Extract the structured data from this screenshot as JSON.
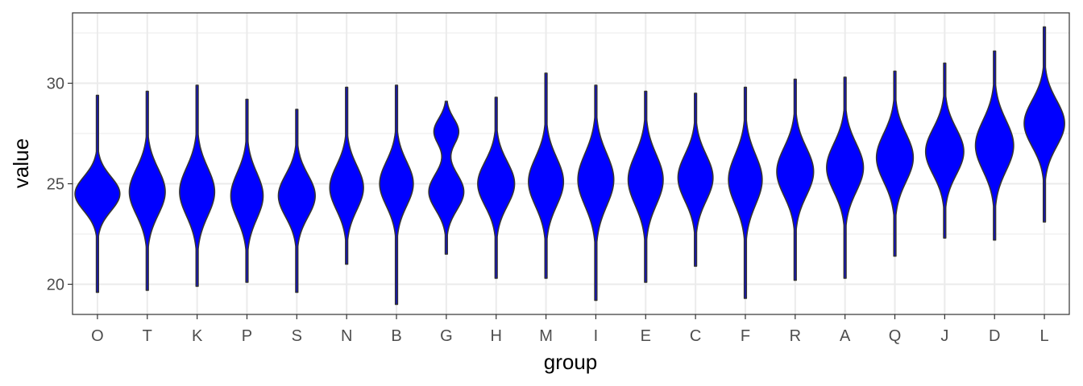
{
  "chart_data": {
    "type": "violin",
    "xlabel": "group",
    "ylabel": "value",
    "ylim": [
      18.5,
      33.5
    ],
    "yticks": [
      20,
      25,
      30
    ],
    "grid": true,
    "legend": "none",
    "fill_color": "#0000ff",
    "outline_color": "#333333",
    "categories": [
      "O",
      "T",
      "K",
      "P",
      "S",
      "N",
      "B",
      "G",
      "H",
      "M",
      "I",
      "E",
      "C",
      "F",
      "R",
      "A",
      "Q",
      "J",
      "D",
      "L"
    ],
    "series": [
      {
        "group": "O",
        "min": 19.6,
        "max": 29.4,
        "modes": [
          {
            "center": 24.5,
            "width": 1.0,
            "spread": 0.85
          }
        ]
      },
      {
        "group": "T",
        "min": 19.7,
        "max": 29.6,
        "modes": [
          {
            "center": 24.6,
            "width": 0.8,
            "spread": 1.15
          }
        ]
      },
      {
        "group": "K",
        "min": 19.9,
        "max": 29.9,
        "modes": [
          {
            "center": 24.6,
            "width": 0.78,
            "spread": 1.2
          }
        ]
      },
      {
        "group": "P",
        "min": 20.1,
        "max": 29.2,
        "modes": [
          {
            "center": 24.4,
            "width": 0.72,
            "spread": 1.15
          }
        ]
      },
      {
        "group": "S",
        "min": 19.6,
        "max": 28.7,
        "modes": [
          {
            "center": 24.4,
            "width": 0.82,
            "spread": 1.05
          }
        ]
      },
      {
        "group": "N",
        "min": 21.0,
        "max": 29.8,
        "modes": [
          {
            "center": 24.8,
            "width": 0.75,
            "spread": 1.1
          }
        ]
      },
      {
        "group": "B",
        "min": 19.0,
        "max": 29.9,
        "modes": [
          {
            "center": 25.0,
            "width": 0.75,
            "spread": 1.1
          }
        ]
      },
      {
        "group": "G",
        "min": 21.5,
        "max": 29.1,
        "modes": [
          {
            "center": 24.6,
            "width": 0.78,
            "spread": 0.9
          },
          {
            "center": 27.6,
            "width": 0.55,
            "spread": 0.65
          }
        ]
      },
      {
        "group": "H",
        "min": 20.3,
        "max": 29.3,
        "modes": [
          {
            "center": 25.0,
            "width": 0.82,
            "spread": 1.1
          }
        ]
      },
      {
        "group": "M",
        "min": 20.3,
        "max": 30.5,
        "modes": [
          {
            "center": 25.1,
            "width": 0.78,
            "spread": 1.2
          }
        ]
      },
      {
        "group": "I",
        "min": 19.2,
        "max": 29.9,
        "modes": [
          {
            "center": 25.2,
            "width": 0.8,
            "spread": 1.3
          }
        ]
      },
      {
        "group": "E",
        "min": 20.1,
        "max": 29.6,
        "modes": [
          {
            "center": 25.2,
            "width": 0.78,
            "spread": 1.25
          }
        ]
      },
      {
        "group": "C",
        "min": 20.9,
        "max": 29.5,
        "modes": [
          {
            "center": 25.3,
            "width": 0.78,
            "spread": 1.15
          }
        ]
      },
      {
        "group": "F",
        "min": 19.3,
        "max": 29.8,
        "modes": [
          {
            "center": 25.2,
            "width": 0.75,
            "spread": 1.25
          }
        ]
      },
      {
        "group": "R",
        "min": 20.2,
        "max": 30.2,
        "modes": [
          {
            "center": 25.6,
            "width": 0.82,
            "spread": 1.2
          }
        ]
      },
      {
        "group": "A",
        "min": 20.3,
        "max": 30.3,
        "modes": [
          {
            "center": 25.8,
            "width": 0.82,
            "spread": 1.2
          }
        ]
      },
      {
        "group": "Q",
        "min": 21.4,
        "max": 30.6,
        "modes": [
          {
            "center": 26.3,
            "width": 0.82,
            "spread": 1.2
          }
        ]
      },
      {
        "group": "J",
        "min": 22.3,
        "max": 31.0,
        "modes": [
          {
            "center": 26.6,
            "width": 0.85,
            "spread": 1.15
          }
        ]
      },
      {
        "group": "D",
        "min": 22.2,
        "max": 31.6,
        "modes": [
          {
            "center": 26.9,
            "width": 0.85,
            "spread": 1.25
          }
        ]
      },
      {
        "group": "L",
        "min": 23.1,
        "max": 32.8,
        "modes": [
          {
            "center": 28.0,
            "width": 0.9,
            "spread": 1.15
          }
        ]
      }
    ]
  }
}
